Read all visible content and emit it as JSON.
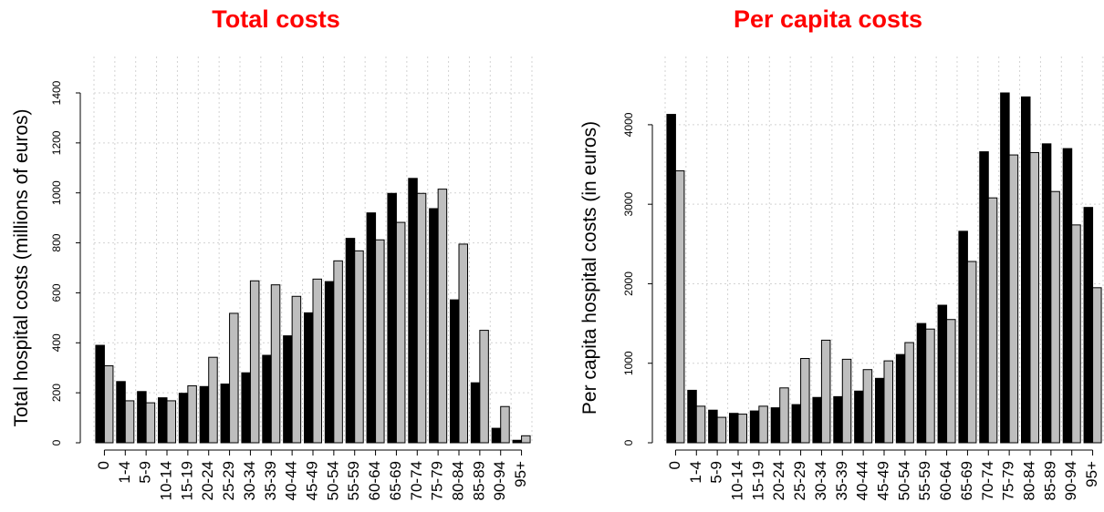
{
  "colors": {
    "title": "#ff0000",
    "series_1": "#000000",
    "series_2": "#bebebe",
    "grid": "#d3d3d3"
  },
  "chart_data": [
    {
      "type": "bar",
      "title": "Total costs",
      "ylabel": "Total hospital costs (millions of euros)",
      "xlabel": "",
      "categories": [
        "0",
        "1-4",
        "5-9",
        "10-14",
        "15-19",
        "20-24",
        "25-29",
        "30-34",
        "35-39",
        "40-44",
        "45-49",
        "50-54",
        "55-59",
        "60-64",
        "65-69",
        "70-74",
        "75-79",
        "80-84",
        "85-89",
        "90-94",
        "95+"
      ],
      "series": [
        {
          "values": [
            390,
            245,
            205,
            180,
            198,
            225,
            235,
            280,
            350,
            428,
            520,
            645,
            818,
            920,
            998,
            1058,
            937,
            572,
            240,
            58,
            10
          ]
        },
        {
          "values": [
            308,
            168,
            160,
            168,
            228,
            342,
            518,
            648,
            632,
            586,
            655,
            728,
            768,
            812,
            882,
            998,
            1015,
            795,
            450,
            145,
            28
          ]
        }
      ],
      "ylim": [
        0,
        1400
      ],
      "yticks": [
        0,
        200,
        400,
        600,
        800,
        1000,
        1200,
        1400
      ],
      "grid": true
    },
    {
      "type": "bar",
      "title": "Per capita costs",
      "ylabel": "Per capita hospital costs (in euros)",
      "xlabel": "",
      "categories": [
        "0",
        "1-4",
        "5-9",
        "10-14",
        "15-19",
        "20-24",
        "25-29",
        "30-34",
        "35-39",
        "40-44",
        "45-49",
        "50-54",
        "55-59",
        "60-64",
        "65-69",
        "70-74",
        "75-79",
        "80-84",
        "85-89",
        "90-94",
        "95+"
      ],
      "series": [
        {
          "values": [
            4130,
            660,
            410,
            370,
            400,
            440,
            480,
            570,
            580,
            650,
            810,
            1110,
            1500,
            1730,
            2660,
            3660,
            4400,
            4350,
            3760,
            3700,
            2960
          ]
        },
        {
          "values": [
            3420,
            460,
            320,
            360,
            460,
            690,
            1060,
            1290,
            1050,
            920,
            1030,
            1260,
            1430,
            1550,
            2280,
            3080,
            3620,
            3650,
            3160,
            2740,
            1950
          ]
        }
      ],
      "ylim": [
        0,
        4400
      ],
      "yticks": [
        0,
        1000,
        2000,
        3000,
        4000
      ],
      "grid": true
    }
  ]
}
